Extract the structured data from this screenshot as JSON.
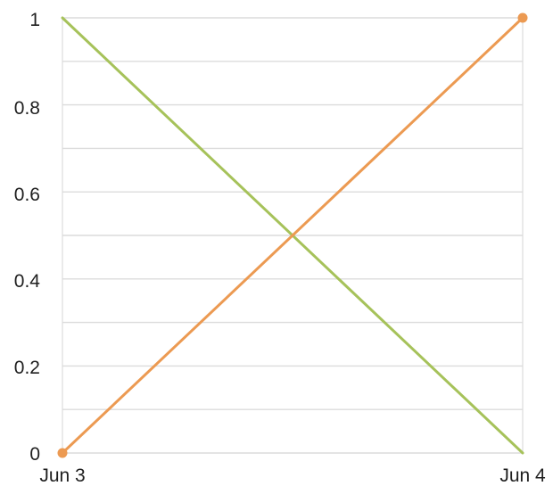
{
  "chart_data": {
    "type": "line",
    "x": [
      "Jun 3",
      "Jun 4"
    ],
    "series": [
      {
        "values": [
          1,
          0
        ],
        "color": "#a6c25a"
      },
      {
        "values": [
          0,
          1
        ],
        "color": "#ec9a52"
      }
    ],
    "y_ticks": [
      "0",
      "0.2",
      "0.4",
      "0.6",
      "0.8",
      "1"
    ],
    "x_ticks": [
      "Jun 3",
      "Jun 4"
    ],
    "ylim": [
      0,
      1
    ],
    "grid": true,
    "endpoint_markers": "second series only",
    "colors": {
      "grid": "#dcdcdc",
      "text": "#1f1f1f"
    }
  }
}
